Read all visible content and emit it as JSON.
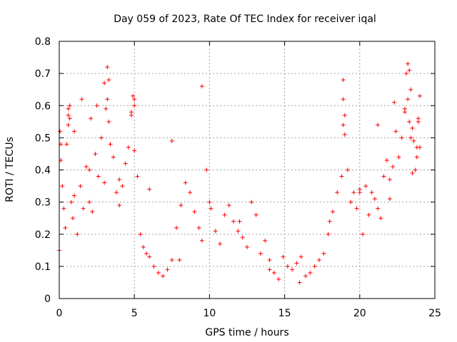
{
  "chart_data": {
    "type": "scatter",
    "title": "Day 059 of 2023, Rate Of TEC Index for receiver iqal",
    "xlabel": "GPS time / hours",
    "ylabel": "ROTI / TECUs",
    "xlim": [
      0,
      25
    ],
    "ylim": [
      0,
      0.8
    ],
    "x_ticks": [
      "0",
      "5",
      "10",
      "15",
      "20",
      "25"
    ],
    "y_ticks": [
      "0",
      "0.1",
      "0.2",
      "0.3",
      "0.4",
      "0.5",
      "0.6",
      "0.7",
      "0.8"
    ],
    "grid": true,
    "marker": "+",
    "color": "#ff0000",
    "series": [
      {
        "name": "ROTI",
        "x": [
          0.0,
          0.05,
          0.1,
          0.2,
          0.3,
          0.4,
          0.5,
          0.6,
          0.7,
          0.8,
          0.9,
          1.0,
          1.2,
          1.4,
          1.6,
          1.8,
          2.0,
          2.2,
          2.4,
          2.6,
          2.8,
          3.0,
          3.2,
          3.3,
          3.4,
          3.6,
          3.8,
          4.0,
          4.2,
          4.4,
          4.6,
          4.8,
          4.9,
          5.0,
          5.2,
          5.4,
          5.6,
          5.8,
          6.0,
          6.3,
          6.6,
          6.9,
          7.2,
          7.5,
          7.8,
          8.1,
          8.4,
          8.7,
          9.0,
          9.3,
          9.5,
          9.8,
          10.1,
          10.4,
          10.7,
          11.0,
          11.3,
          11.6,
          11.9,
          12.2,
          12.5,
          12.8,
          13.1,
          13.4,
          13.7,
          14.0,
          14.3,
          14.6,
          14.9,
          15.2,
          15.5,
          15.8,
          16.1,
          16.4,
          16.7,
          17.0,
          17.3,
          17.6,
          17.9,
          18.2,
          18.5,
          18.8,
          18.9,
          19.0,
          19.2,
          19.4,
          19.6,
          19.8,
          20.0,
          20.2,
          20.4,
          20.6,
          20.8,
          21.0,
          21.2,
          21.4,
          21.6,
          21.8,
          22.0,
          22.2,
          22.4,
          22.6,
          22.8,
          23.0,
          23.1,
          23.2,
          23.3,
          23.4,
          23.5,
          23.6,
          23.7,
          23.8,
          23.9,
          24.0,
          0.1,
          0.6,
          0.6,
          0.7,
          1.5,
          2.1,
          2.5,
          3.0,
          3.2,
          3.1,
          3.3,
          4.8,
          5.0,
          5.0,
          7.5,
          9.5,
          18.9,
          18.9,
          19.0,
          21.2,
          22.3,
          23.2,
          23.4,
          23.3,
          23.0,
          23.5,
          23.9,
          23.8,
          24.0,
          1.0,
          2.0,
          4.0,
          6.0,
          8.0,
          10.0,
          12.0,
          14.0,
          16.0,
          18.0,
          20.0,
          22.0
        ],
        "y": [
          0.15,
          0.52,
          0.43,
          0.35,
          0.28,
          0.22,
          0.48,
          0.57,
          0.56,
          0.3,
          0.25,
          0.32,
          0.2,
          0.35,
          0.28,
          0.41,
          0.3,
          0.27,
          0.45,
          0.38,
          0.5,
          0.36,
          0.62,
          0.55,
          0.48,
          0.44,
          0.33,
          0.29,
          0.35,
          0.42,
          0.47,
          0.58,
          0.63,
          0.46,
          0.38,
          0.2,
          0.16,
          0.14,
          0.13,
          0.1,
          0.08,
          0.07,
          0.09,
          0.12,
          0.22,
          0.29,
          0.36,
          0.33,
          0.27,
          0.22,
          0.18,
          0.4,
          0.28,
          0.21,
          0.17,
          0.26,
          0.29,
          0.24,
          0.21,
          0.19,
          0.16,
          0.3,
          0.26,
          0.14,
          0.18,
          0.12,
          0.08,
          0.06,
          0.13,
          0.1,
          0.09,
          0.11,
          0.13,
          0.07,
          0.08,
          0.1,
          0.12,
          0.14,
          0.2,
          0.27,
          0.33,
          0.38,
          0.54,
          0.57,
          0.4,
          0.3,
          0.33,
          0.28,
          0.34,
          0.2,
          0.35,
          0.26,
          0.33,
          0.31,
          0.28,
          0.25,
          0.38,
          0.43,
          0.37,
          0.41,
          0.52,
          0.44,
          0.5,
          0.58,
          0.7,
          0.62,
          0.55,
          0.5,
          0.39,
          0.49,
          0.4,
          0.44,
          0.55,
          0.47,
          0.48,
          0.59,
          0.54,
          0.6,
          0.62,
          0.56,
          0.6,
          0.67,
          0.72,
          0.59,
          0.68,
          0.57,
          0.6,
          0.62,
          0.49,
          0.66,
          0.68,
          0.62,
          0.51,
          0.54,
          0.61,
          0.73,
          0.65,
          0.71,
          0.59,
          0.53,
          0.56,
          0.47,
          0.63,
          0.52,
          0.4,
          0.37,
          0.34,
          0.12,
          0.3,
          0.24,
          0.09,
          0.05,
          0.24,
          0.33,
          0.31
        ]
      }
    ]
  }
}
